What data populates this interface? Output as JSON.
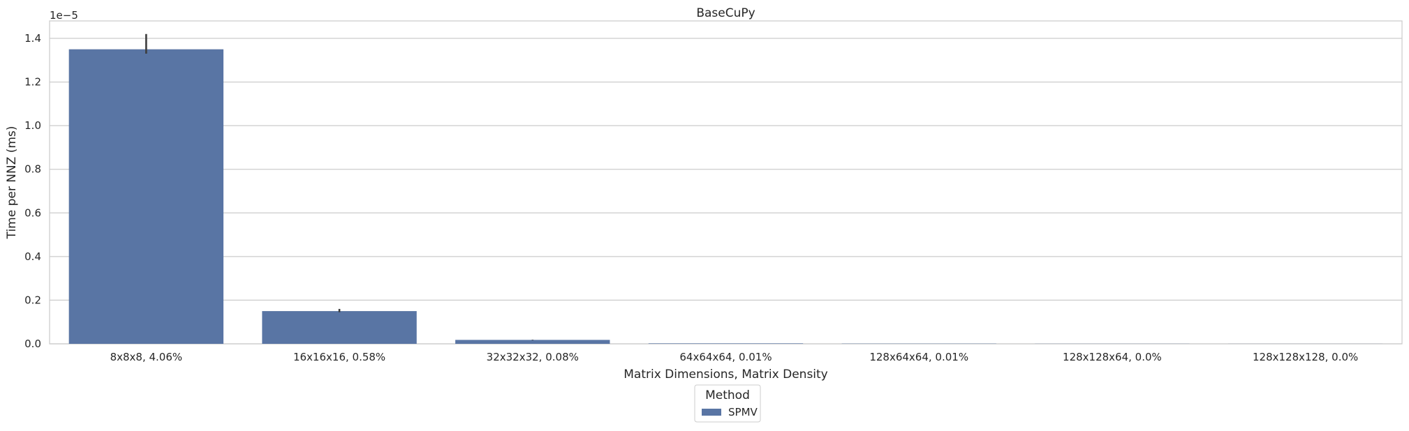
{
  "chart_data": {
    "type": "bar",
    "title": "BaseCuPy",
    "xlabel": "Matrix Dimensions, Matrix Density",
    "ylabel": "Time per NNZ (ms)",
    "y_offset_label": "1e−5",
    "ylim": [
      0,
      1.48
    ],
    "yticks": [
      0.0,
      0.2,
      0.4,
      0.6,
      0.8,
      1.0,
      1.2,
      1.4
    ],
    "ytick_labels": [
      "0.0",
      "0.2",
      "0.4",
      "0.6",
      "0.8",
      "1.0",
      "1.2",
      "1.4"
    ],
    "grid": true,
    "legend_placement": "below",
    "categories": [
      "8x8x8, 4.06%",
      "16x16x16, 0.58%",
      "32x32x32, 0.08%",
      "64x64x64, 0.01%",
      "128x64x64, 0.01%",
      "128x128x64, 0.0%",
      "128x128x128, 0.0%"
    ],
    "series": [
      {
        "name": "SPMV",
        "color": "#5975a4",
        "values": [
          1.35,
          0.15,
          0.018,
          0.002,
          0.001,
          0.0005,
          0.0003
        ],
        "error_low": [
          1.33,
          0.145,
          0.017,
          0.002,
          0.001,
          0.0005,
          0.0003
        ],
        "error_high": [
          1.42,
          0.16,
          0.019,
          0.002,
          0.001,
          0.0005,
          0.0003
        ]
      }
    ],
    "legend": {
      "title": "Method",
      "entries": [
        "SPMV"
      ]
    }
  }
}
